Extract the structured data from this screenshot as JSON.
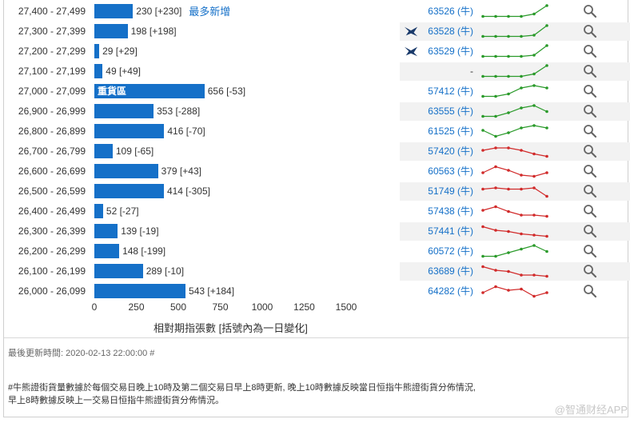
{
  "chart_data": {
    "type": "bar",
    "orientation": "horizontal",
    "xlabel": "相對期指張數 [括號內為一日變化]",
    "xlim": [
      0,
      1500
    ],
    "xticks": [
      0,
      250,
      500,
      750,
      1000,
      1250,
      1500
    ],
    "categories": [
      "27,400 - 27,499",
      "27,300 - 27,399",
      "27,200 - 27,299",
      "27,100 - 27,199",
      "27,000 - 27,099",
      "26,900 - 26,999",
      "26,800 - 26,899",
      "26,700 - 26,799",
      "26,600 - 26,699",
      "26,500 - 26,599",
      "26,400 - 26,499",
      "26,300 - 26,399",
      "26,200 - 26,299",
      "26,100 - 26,199",
      "26,000 - 26,099"
    ],
    "values": [
      230,
      198,
      29,
      49,
      656,
      353,
      416,
      109,
      379,
      414,
      52,
      139,
      148,
      289,
      543
    ],
    "changes": [
      "+230",
      "+198",
      "+29",
      "+49",
      "-53",
      "-288",
      "-70",
      "-65",
      "+43",
      "-305",
      "-27",
      "-19",
      "-199",
      "-10",
      "+184"
    ],
    "annotations": [
      {
        "row": 0,
        "text": "最多新增",
        "position": "after-value"
      },
      {
        "row": 4,
        "text": "重貨區",
        "position": "inside-bar"
      }
    ],
    "codes": [
      "63526 (牛)",
      "63528 (牛)",
      "63529 (牛)",
      "-",
      "57412 (牛)",
      "63555 (牛)",
      "61525 (牛)",
      "57420 (牛)",
      "60563 (牛)",
      "51749 (牛)",
      "57438 (牛)",
      "57441 (牛)",
      "60572 (牛)",
      "63689 (牛)",
      "64282 (牛)"
    ],
    "issuer_logo_rows": [
      1,
      2
    ],
    "sparklines": [
      {
        "color": "#2a9a2a",
        "points": [
          0.1,
          0.1,
          0.1,
          0.1,
          0.3,
          1.0
        ]
      },
      {
        "color": "#2a9a2a",
        "points": [
          0.1,
          0.1,
          0.1,
          0.1,
          0.2,
          1.0
        ]
      },
      {
        "color": "#2a9a2a",
        "points": [
          0.1,
          0.1,
          0.1,
          0.1,
          0.2,
          1.0
        ]
      },
      {
        "color": "#2a9a2a",
        "points": [
          0.1,
          0.1,
          0.1,
          0.1,
          0.3,
          1.0
        ]
      },
      {
        "color": "#2a9a2a",
        "points": [
          0.1,
          0.1,
          0.3,
          0.8,
          1.0,
          0.8
        ]
      },
      {
        "color": "#2a9a2a",
        "points": [
          0.1,
          0.1,
          0.4,
          0.8,
          1.0,
          0.5
        ]
      },
      {
        "color": "#2a9a2a",
        "points": [
          0.6,
          0.1,
          0.4,
          0.8,
          1.0,
          0.8
        ]
      },
      {
        "color": "#d12a2a",
        "points": [
          0.6,
          0.8,
          0.8,
          0.6,
          0.3,
          0.1
        ]
      },
      {
        "color": "#d12a2a",
        "points": [
          0.4,
          0.9,
          0.6,
          0.2,
          0.1,
          0.4
        ]
      },
      {
        "color": "#d12a2a",
        "points": [
          0.7,
          0.8,
          0.7,
          0.7,
          0.8,
          0.1
        ]
      },
      {
        "color": "#d12a2a",
        "points": [
          0.6,
          0.9,
          0.5,
          0.2,
          0.2,
          0.1
        ]
      },
      {
        "color": "#d12a2a",
        "points": [
          0.9,
          0.6,
          0.5,
          0.3,
          0.2,
          0.1
        ]
      },
      {
        "color": "#2a9a2a",
        "points": [
          0.1,
          0.1,
          0.4,
          0.7,
          1.0,
          0.5
        ]
      },
      {
        "color": "#d12a2a",
        "points": [
          0.9,
          0.6,
          0.5,
          0.2,
          0.2,
          0.1
        ]
      },
      {
        "color": "#d12a2a",
        "points": [
          0.4,
          0.9,
          0.6,
          0.7,
          0.1,
          0.4
        ]
      }
    ]
  },
  "footer": {
    "last_updated": "最後更新時間: 2020-02-13 22:00:00 #",
    "note_line1": "#牛熊證街貨量數據於每個交易日晚上10時及第二個交易日早上8時更新, 晚上10時數據反映當日恒指牛熊證街貨分佈情況,",
    "note_line2": "早上8時數據反映上一交易日恒指牛熊證街貨分佈情況。",
    "watermark": "@智通财经APP"
  },
  "colors": {
    "bar": "#1570c8",
    "link": "#1570c8",
    "up": "#2a9a2a",
    "down": "#d12a2a"
  },
  "icons": {
    "issuer_logo": "issuer-logo-icon",
    "search": "magnifier-icon"
  }
}
